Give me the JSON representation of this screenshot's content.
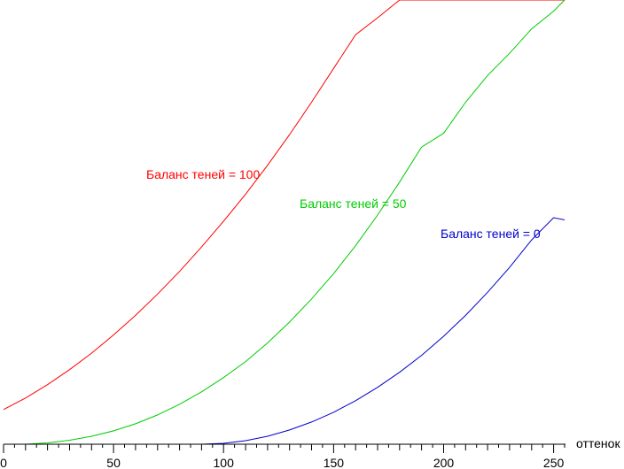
{
  "chart_data": {
    "type": "line",
    "xlabel": "оттенок",
    "ylabel": "",
    "xlim": [
      0,
      255
    ],
    "ylim": [
      0,
      1
    ],
    "xticks": [
      0,
      50,
      100,
      150,
      200,
      250
    ],
    "grid": false,
    "series": [
      {
        "name": "Баланс теней = 100",
        "color": "#ff0000",
        "x": [
          0,
          10,
          20,
          30,
          40,
          50,
          60,
          70,
          80,
          90,
          100,
          110,
          120,
          130,
          140,
          150,
          160,
          170,
          180,
          190,
          200,
          210,
          220,
          230,
          240,
          250,
          255
        ],
        "y": [
          0.078,
          0.104,
          0.134,
          0.168,
          0.205,
          0.246,
          0.29,
          0.338,
          0.389,
          0.444,
          0.502,
          0.563,
          0.628,
          0.697,
          0.77,
          0.846,
          0.922,
          0.96,
          1.0,
          1.0,
          1.0,
          1.0,
          1.0,
          1.0,
          1.0,
          1.0,
          1.0
        ]
      },
      {
        "name": "Баланс теней = 50",
        "color": "#00cc00",
        "x": [
          0,
          10,
          20,
          30,
          40,
          50,
          60,
          70,
          80,
          90,
          100,
          110,
          120,
          130,
          140,
          150,
          160,
          170,
          180,
          190,
          200,
          210,
          220,
          230,
          240,
          250,
          255
        ],
        "y": [
          0.0,
          0.0,
          0.003,
          0.009,
          0.018,
          0.03,
          0.046,
          0.066,
          0.09,
          0.118,
          0.15,
          0.186,
          0.228,
          0.275,
          0.327,
          0.384,
          0.447,
          0.516,
          0.59,
          0.669,
          0.7,
          0.77,
          0.83,
          0.88,
          0.935,
          0.975,
          1.0
        ]
      },
      {
        "name": "Баланс теней = 0",
        "color": "#0000cc",
        "x": [
          0,
          10,
          20,
          30,
          40,
          50,
          60,
          70,
          80,
          90,
          100,
          110,
          120,
          130,
          140,
          150,
          160,
          170,
          180,
          190,
          200,
          210,
          220,
          230,
          240,
          250,
          255
        ],
        "y": [
          0.0,
          0.0,
          0.0,
          0.0,
          0.0,
          0.0,
          0.0,
          0.0,
          0.0,
          0.0,
          0.002,
          0.008,
          0.018,
          0.032,
          0.05,
          0.072,
          0.098,
          0.128,
          0.162,
          0.2,
          0.243,
          0.29,
          0.342,
          0.398,
          0.46,
          0.51,
          0.505
        ]
      }
    ]
  }
}
